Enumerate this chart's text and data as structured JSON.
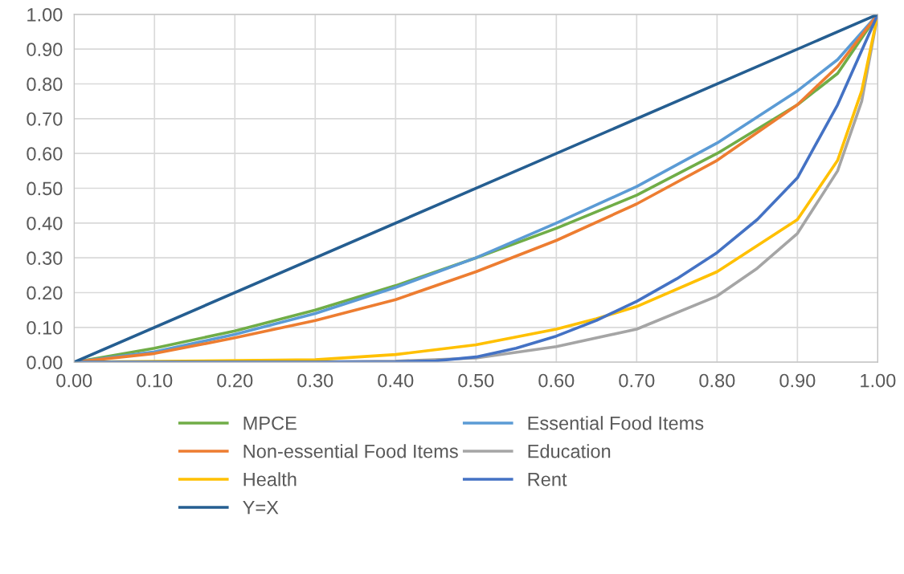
{
  "chart_data": {
    "type": "line",
    "series": [
      {
        "name": "MPCE",
        "color": "#70ad47",
        "x": [
          0,
          0.1,
          0.2,
          0.3,
          0.4,
          0.5,
          0.6,
          0.7,
          0.8,
          0.9,
          0.95,
          1
        ],
        "values": [
          0,
          0.04,
          0.09,
          0.15,
          0.22,
          0.3,
          0.385,
          0.48,
          0.6,
          0.74,
          0.83,
          1
        ]
      },
      {
        "name": "Essential Food Items",
        "color": "#5b9bd5",
        "x": [
          0,
          0.1,
          0.2,
          0.3,
          0.4,
          0.5,
          0.6,
          0.7,
          0.8,
          0.9,
          0.95,
          1
        ],
        "values": [
          0,
          0.03,
          0.08,
          0.14,
          0.215,
          0.3,
          0.4,
          0.505,
          0.63,
          0.78,
          0.87,
          1
        ]
      },
      {
        "name": "Non-essential Food Items",
        "color": "#ed7d31",
        "x": [
          0,
          0.1,
          0.2,
          0.3,
          0.4,
          0.5,
          0.6,
          0.7,
          0.8,
          0.9,
          0.95,
          1
        ],
        "values": [
          0,
          0.025,
          0.07,
          0.12,
          0.18,
          0.26,
          0.35,
          0.455,
          0.58,
          0.74,
          0.85,
          1
        ]
      },
      {
        "name": "Education",
        "color": "#a5a5a5",
        "x": [
          0,
          0.3,
          0.4,
          0.5,
          0.6,
          0.7,
          0.8,
          0.85,
          0.9,
          0.95,
          0.98,
          1
        ],
        "values": [
          0,
          0.001,
          0.003,
          0.012,
          0.045,
          0.095,
          0.19,
          0.27,
          0.37,
          0.55,
          0.75,
          1
        ]
      },
      {
        "name": "Health",
        "color": "#ffc000",
        "x": [
          0,
          0.3,
          0.4,
          0.5,
          0.6,
          0.65,
          0.7,
          0.8,
          0.9,
          0.95,
          0.98,
          1
        ],
        "values": [
          0,
          0.007,
          0.022,
          0.05,
          0.095,
          0.125,
          0.16,
          0.26,
          0.41,
          0.58,
          0.78,
          1
        ]
      },
      {
        "name": "Rent",
        "color": "#4472c4",
        "x": [
          0,
          0.4,
          0.45,
          0.5,
          0.55,
          0.6,
          0.65,
          0.7,
          0.75,
          0.8,
          0.85,
          0.9,
          0.95,
          1
        ],
        "values": [
          0,
          0.001,
          0.004,
          0.015,
          0.04,
          0.075,
          0.12,
          0.175,
          0.24,
          0.315,
          0.41,
          0.53,
          0.74,
          1
        ]
      },
      {
        "name": "Y=X",
        "color": "#255e91",
        "x": [
          0,
          1
        ],
        "values": [
          0,
          1
        ]
      }
    ],
    "xlim": [
      0,
      1
    ],
    "ylim": [
      0,
      1
    ],
    "xticks": [
      {
        "value": 0,
        "label": "0.00"
      },
      {
        "value": 0.1,
        "label": "0.10"
      },
      {
        "value": 0.2,
        "label": "0.20"
      },
      {
        "value": 0.3,
        "label": "0.30"
      },
      {
        "value": 0.4,
        "label": "0.40"
      },
      {
        "value": 0.5,
        "label": "0.50"
      },
      {
        "value": 0.6,
        "label": "0.60"
      },
      {
        "value": 0.7,
        "label": "0.70"
      },
      {
        "value": 0.8,
        "label": "0.80"
      },
      {
        "value": 0.9,
        "label": "0.90"
      },
      {
        "value": 1,
        "label": "1.00"
      }
    ],
    "yticks": [
      {
        "value": 0,
        "label": "0.00"
      },
      {
        "value": 0.1,
        "label": "0.10"
      },
      {
        "value": 0.2,
        "label": "0.20"
      },
      {
        "value": 0.3,
        "label": "0.30"
      },
      {
        "value": 0.4,
        "label": "0.40"
      },
      {
        "value": 0.5,
        "label": "0.50"
      },
      {
        "value": 0.6,
        "label": "0.60"
      },
      {
        "value": 0.7,
        "label": "0.70"
      },
      {
        "value": 0.8,
        "label": "0.80"
      },
      {
        "value": 0.9,
        "label": "0.90"
      },
      {
        "value": 1,
        "label": "1.00"
      }
    ],
    "grid": true,
    "legend": "bottom",
    "marker": "none",
    "line_style": "solid"
  }
}
